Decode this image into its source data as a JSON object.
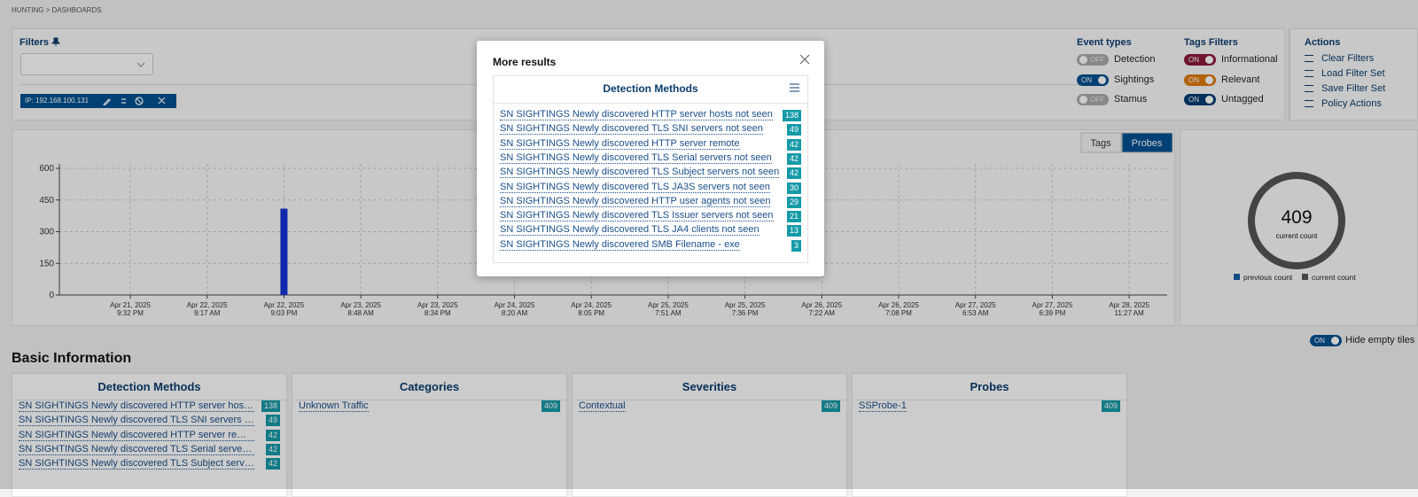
{
  "breadcrumb": "HUNTING  >  DASHBOARDS",
  "filters": {
    "title": "Filters",
    "chip": "IP: 192.168.100.131"
  },
  "event_types": {
    "title": "Event types",
    "items": [
      {
        "state": "OFF",
        "label": "Detection"
      },
      {
        "state": "ON",
        "label": "Sightings"
      },
      {
        "state": "OFF",
        "label": "Stamus"
      }
    ]
  },
  "tags_filters": {
    "title": "Tags Filters",
    "items": [
      {
        "state": "ON",
        "label": "Informational",
        "color": "#8b1a3a"
      },
      {
        "state": "ON",
        "label": "Relevant",
        "color": "#e07b10"
      },
      {
        "state": "ON",
        "label": "Untagged",
        "color": "#003d73"
      }
    ]
  },
  "actions": {
    "title": "Actions",
    "items": [
      "Clear Filters",
      "Load Filter Set",
      "Save Filter Set",
      "Policy Actions"
    ]
  },
  "chart": {
    "tabs": [
      "Tags",
      "Probes"
    ],
    "active_tab": 1,
    "ylim": [
      0,
      600
    ],
    "yticks": [
      0,
      150,
      300,
      450,
      600
    ],
    "grid": true,
    "color": "#1433d6",
    "categories": [
      {
        "date": "Apr 21, 2025",
        "time": "9:32 PM"
      },
      {
        "date": "Apr 22, 2025",
        "time": "9:17 AM"
      },
      {
        "date": "Apr 22, 2025",
        "time": "9:03 PM"
      },
      {
        "date": "Apr 23, 2025",
        "time": "8:48 AM"
      },
      {
        "date": "Apr 23, 2025",
        "time": "8:34 PM"
      },
      {
        "date": "Apr 24, 2025",
        "time": "8:20 AM"
      },
      {
        "date": "Apr 24, 2025",
        "time": "8:05 PM"
      },
      {
        "date": "Apr 25, 2025",
        "time": "7:51 AM"
      },
      {
        "date": "Apr 25, 2025",
        "time": "7:36 PM"
      },
      {
        "date": "Apr 26, 2025",
        "time": "7:22 AM"
      },
      {
        "date": "Apr 26, 2025",
        "time": "7:08 PM"
      },
      {
        "date": "Apr 27, 2025",
        "time": "6:53 AM"
      },
      {
        "date": "Apr 27, 2025",
        "time": "6:39 PM"
      },
      {
        "date": "Apr 28, 2025",
        "time": "11:27 AM"
      }
    ],
    "values": [
      null,
      null,
      409,
      null,
      null,
      null,
      null,
      null,
      null,
      null,
      null,
      null,
      null,
      null
    ]
  },
  "count": {
    "value": 409,
    "label": "current count",
    "legend": [
      {
        "name": "previous count",
        "color": "#1a5fa8"
      },
      {
        "name": "current count",
        "color": "#555555"
      }
    ]
  },
  "hide_empty": {
    "state": "ON",
    "label": "Hide empty tiles"
  },
  "basic": {
    "title": "Basic Information",
    "tiles": [
      {
        "title": "Detection Methods",
        "rows": [
          {
            "label": "SN SIGHTINGS Newly discovered HTTP server hosts not seen",
            "count": "138"
          },
          {
            "label": "SN SIGHTINGS Newly discovered TLS SNI servers not seen",
            "count": "49"
          },
          {
            "label": "SN SIGHTINGS Newly discovered HTTP server remote",
            "count": "42"
          },
          {
            "label": "SN SIGHTINGS Newly discovered TLS Serial servers not seen",
            "count": "42"
          },
          {
            "label": "SN SIGHTINGS Newly discovered TLS Subject servers not seen",
            "count": "42"
          }
        ]
      },
      {
        "title": "Categories",
        "rows": [
          {
            "label": "Unknown Traffic",
            "count": "409"
          }
        ]
      },
      {
        "title": "Severities",
        "rows": [
          {
            "label": "Contextual",
            "count": "409"
          }
        ]
      },
      {
        "title": "Probes",
        "rows": [
          {
            "label": "SSProbe-1",
            "count": "409"
          }
        ]
      }
    ]
  },
  "modal": {
    "title": "More results",
    "panel_title": "Detection Methods",
    "rows": [
      {
        "label": "SN SIGHTINGS Newly discovered HTTP server hosts not seen",
        "count": "138"
      },
      {
        "label": "SN SIGHTINGS Newly discovered TLS SNI servers not seen",
        "count": "49"
      },
      {
        "label": "SN SIGHTINGS Newly discovered HTTP server remote",
        "count": "42"
      },
      {
        "label": "SN SIGHTINGS Newly discovered TLS Serial servers not seen",
        "count": "42"
      },
      {
        "label": "SN SIGHTINGS Newly discovered TLS Subject servers not seen",
        "count": "42"
      },
      {
        "label": "SN SIGHTINGS Newly discovered TLS JA3S servers not seen",
        "count": "30"
      },
      {
        "label": "SN SIGHTINGS Newly discovered HTTP user agents not seen",
        "count": "29"
      },
      {
        "label": "SN SIGHTINGS Newly discovered TLS Issuer servers not seen",
        "count": "21"
      },
      {
        "label": "SN SIGHTINGS Newly discovered TLS JA4 clients not seen",
        "count": "13"
      },
      {
        "label": "SN SIGHTINGS Newly discovered SMB Filename - exe",
        "count": "3"
      }
    ]
  }
}
